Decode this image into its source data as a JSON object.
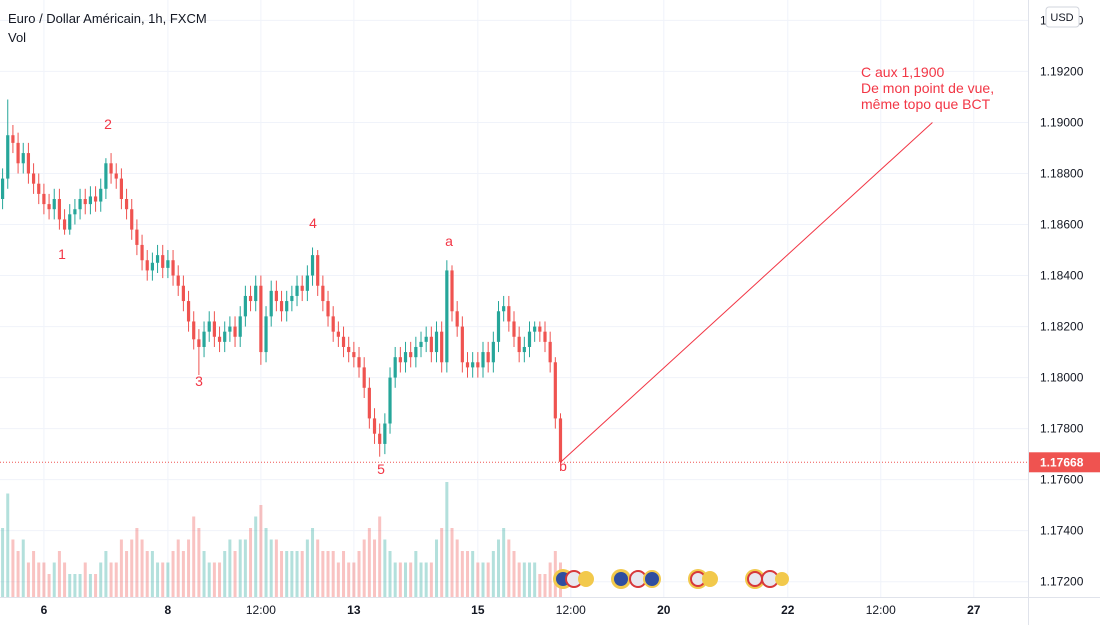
{
  "chart_data": {
    "type": "candlestick",
    "title": "Euro / Dollar Américain, 1h, FXCM",
    "subtitle": "Vol",
    "currency": "USD",
    "up_color": "#26a69a",
    "down_color": "#ef5350",
    "annotation_color": "#f23645",
    "xlim": [
      -0.5,
      198.5
    ],
    "xticks": [
      {
        "value": 8,
        "label": "6"
      },
      {
        "value": 32,
        "label": "8"
      },
      {
        "value": 50,
        "label": "12:00"
      },
      {
        "value": 68,
        "label": "13"
      },
      {
        "value": 92,
        "label": "15"
      },
      {
        "value": 110,
        "label": "12:00"
      },
      {
        "value": 128,
        "label": "20"
      },
      {
        "value": 152,
        "label": "22"
      },
      {
        "value": 170,
        "label": "12:00"
      },
      {
        "value": 188,
        "label": "27"
      }
    ],
    "ylim": [
      1.1714,
      1.1948
    ],
    "yticks": [
      {
        "value": 1.172,
        "label": "1.17200"
      },
      {
        "value": 1.174,
        "label": "1.17400"
      },
      {
        "value": 1.176,
        "label": "1.17600"
      },
      {
        "value": 1.178,
        "label": "1.17800"
      },
      {
        "value": 1.18,
        "label": "1.18000"
      },
      {
        "value": 1.182,
        "label": "1.18200"
      },
      {
        "value": 1.184,
        "label": "1.18400"
      },
      {
        "value": 1.186,
        "label": "1.18600"
      },
      {
        "value": 1.188,
        "label": "1.18800"
      },
      {
        "value": 1.19,
        "label": "1.19000"
      },
      {
        "value": 1.192,
        "label": "1.19200"
      },
      {
        "value": 1.194,
        "label": "1.19400"
      }
    ],
    "last_price": {
      "value": 1.17668,
      "label": "1.17668"
    },
    "open": [
      1.187,
      1.1878,
      1.1895,
      1.1892,
      1.1884,
      1.1888,
      1.188,
      1.1876,
      1.1872,
      1.1868,
      1.1866,
      1.187,
      1.1862,
      1.1858,
      1.1864,
      1.1866,
      1.187,
      1.1868,
      1.1871,
      1.1869,
      1.1874,
      1.1884,
      1.188,
      1.1878,
      1.187,
      1.1866,
      1.1858,
      1.1852,
      1.1846,
      1.1842,
      1.1845,
      1.1848,
      1.1843,
      1.1846,
      1.184,
      1.1836,
      1.183,
      1.1822,
      1.1815,
      1.1812,
      1.1818,
      1.1822,
      1.1816,
      1.1814,
      1.1818,
      1.182,
      1.1816,
      1.1824,
      1.1832,
      1.183,
      1.1836,
      1.181,
      1.1824,
      1.1834,
      1.183,
      1.1826,
      1.183,
      1.1832,
      1.1836,
      1.1834,
      1.184,
      1.1848,
      1.1836,
      1.183,
      1.1824,
      1.1818,
      1.1816,
      1.1812,
      1.181,
      1.1808,
      1.1804,
      1.1796,
      1.1784,
      1.1778,
      1.1774,
      1.1782,
      1.18,
      1.1808,
      1.1806,
      1.181,
      1.1808,
      1.1812,
      1.1814,
      1.1816,
      1.181,
      1.1818,
      1.1806,
      1.1842,
      1.1826,
      1.182,
      1.1806,
      1.1804,
      1.1806,
      1.1804,
      1.181,
      1.1806,
      1.1814,
      1.1826,
      1.1828,
      1.1822,
      1.1816,
      1.181,
      1.1812,
      1.1818,
      1.182,
      1.1818,
      1.1814,
      1.1806,
      1.1784
    ],
    "high": [
      1.1882,
      1.1909,
      1.1899,
      1.1896,
      1.1892,
      1.1892,
      1.1884,
      1.188,
      1.1876,
      1.1872,
      1.1874,
      1.1874,
      1.1866,
      1.1868,
      1.187,
      1.1874,
      1.1874,
      1.1875,
      1.1875,
      1.1878,
      1.1886,
      1.1888,
      1.1884,
      1.1882,
      1.1874,
      1.187,
      1.1862,
      1.1856,
      1.185,
      1.1849,
      1.1852,
      1.1852,
      1.185,
      1.185,
      1.1844,
      1.184,
      1.1834,
      1.1826,
      1.1819,
      1.1822,
      1.1826,
      1.1826,
      1.182,
      1.1822,
      1.1824,
      1.1824,
      1.1828,
      1.1836,
      1.1836,
      1.184,
      1.184,
      1.1828,
      1.1838,
      1.1838,
      1.1834,
      1.1834,
      1.1836,
      1.184,
      1.184,
      1.1844,
      1.1851,
      1.185,
      1.184,
      1.1834,
      1.1828,
      1.1822,
      1.182,
      1.1816,
      1.1814,
      1.1812,
      1.1808,
      1.18,
      1.1788,
      1.1782,
      1.1786,
      1.1804,
      1.1812,
      1.1812,
      1.1814,
      1.1814,
      1.1816,
      1.1818,
      1.182,
      1.182,
      1.1822,
      1.1822,
      1.1846,
      1.1844,
      1.183,
      1.1824,
      1.181,
      1.181,
      1.181,
      1.1814,
      1.1814,
      1.1818,
      1.183,
      1.1832,
      1.1832,
      1.1826,
      1.182,
      1.1816,
      1.1822,
      1.1822,
      1.1822,
      1.1822,
      1.1818,
      1.1808,
      1.1786
    ],
    "low": [
      1.1866,
      1.1874,
      1.1888,
      1.188,
      1.188,
      1.1876,
      1.1872,
      1.1868,
      1.1864,
      1.1862,
      1.1862,
      1.1858,
      1.1856,
      1.1856,
      1.186,
      1.1862,
      1.1864,
      1.1864,
      1.1865,
      1.1865,
      1.187,
      1.1876,
      1.1874,
      1.1866,
      1.1862,
      1.1854,
      1.1848,
      1.1842,
      1.1838,
      1.1838,
      1.1841,
      1.1839,
      1.1839,
      1.1836,
      1.1832,
      1.1826,
      1.1818,
      1.1811,
      1.1801,
      1.1808,
      1.1814,
      1.1812,
      1.181,
      1.181,
      1.1814,
      1.1812,
      1.1812,
      1.182,
      1.1826,
      1.1826,
      1.1805,
      1.1806,
      1.182,
      1.1826,
      1.1822,
      1.1822,
      1.1826,
      1.1828,
      1.183,
      1.183,
      1.1836,
      1.1832,
      1.1826,
      1.182,
      1.1814,
      1.1812,
      1.1808,
      1.1806,
      1.1804,
      1.18,
      1.1792,
      1.178,
      1.1774,
      1.1769,
      1.177,
      1.1778,
      1.1796,
      1.1802,
      1.1802,
      1.1804,
      1.1804,
      1.1808,
      1.181,
      1.1806,
      1.1806,
      1.1802,
      1.1802,
      1.1822,
      1.1816,
      1.1802,
      1.18,
      1.18,
      1.18,
      1.18,
      1.1802,
      1.1802,
      1.181,
      1.1822,
      1.1818,
      1.1812,
      1.1806,
      1.1806,
      1.1808,
      1.1814,
      1.1814,
      1.181,
      1.1802,
      1.178,
      1.1767
    ],
    "close": [
      1.1878,
      1.1895,
      1.1892,
      1.1884,
      1.1888,
      1.188,
      1.1876,
      1.1872,
      1.1868,
      1.1866,
      1.187,
      1.1862,
      1.1858,
      1.1864,
      1.1866,
      1.187,
      1.1868,
      1.1871,
      1.1869,
      1.1874,
      1.1884,
      1.188,
      1.1878,
      1.187,
      1.1866,
      1.1858,
      1.1852,
      1.1846,
      1.1842,
      1.1845,
      1.1848,
      1.1843,
      1.1846,
      1.184,
      1.1836,
      1.183,
      1.1822,
      1.1815,
      1.1812,
      1.1818,
      1.1822,
      1.1816,
      1.1814,
      1.1818,
      1.182,
      1.1816,
      1.1824,
      1.1832,
      1.183,
      1.1836,
      1.181,
      1.1824,
      1.1834,
      1.183,
      1.1826,
      1.183,
      1.1832,
      1.1836,
      1.1834,
      1.184,
      1.1848,
      1.1836,
      1.183,
      1.1824,
      1.1818,
      1.1816,
      1.1812,
      1.181,
      1.1808,
      1.1804,
      1.1796,
      1.1784,
      1.1778,
      1.1774,
      1.1782,
      1.18,
      1.1808,
      1.1806,
      1.181,
      1.1808,
      1.1812,
      1.1814,
      1.1816,
      1.181,
      1.1818,
      1.1806,
      1.1842,
      1.1826,
      1.182,
      1.1806,
      1.1804,
      1.1806,
      1.1804,
      1.181,
      1.1806,
      1.1814,
      1.1826,
      1.1828,
      1.1822,
      1.1816,
      1.181,
      1.1812,
      1.1818,
      1.182,
      1.1818,
      1.1814,
      1.1806,
      1.1784,
      1.1767
    ],
    "volume": [
      6,
      9,
      5,
      4,
      5,
      3,
      4,
      3,
      3,
      2,
      3,
      4,
      3,
      2,
      2,
      2,
      3,
      2,
      2,
      3,
      4,
      3,
      3,
      5,
      4,
      5,
      6,
      5,
      4,
      4,
      3,
      3,
      3,
      4,
      5,
      4,
      5,
      7,
      6,
      4,
      3,
      3,
      3,
      4,
      5,
      4,
      5,
      5,
      6,
      7,
      8,
      6,
      5,
      5,
      4,
      4,
      4,
      4,
      4,
      5,
      6,
      5,
      4,
      4,
      4,
      3,
      4,
      3,
      3,
      4,
      5,
      6,
      5,
      7,
      5,
      4,
      3,
      3,
      3,
      3,
      4,
      3,
      3,
      3,
      5,
      6,
      10,
      6,
      5,
      4,
      4,
      4,
      3,
      3,
      3,
      4,
      5,
      6,
      5,
      4,
      3,
      3,
      3,
      3,
      2,
      2,
      3,
      4,
      3
    ],
    "wave_labels": [
      "1",
      "2",
      "3",
      "4",
      "5",
      "a",
      "b"
    ],
    "projection": {
      "x": [
        108,
        180
      ],
      "y": [
        1.17668,
        1.19
      ]
    },
    "note": [
      "C aux 1,1900",
      "De mon point de vue,",
      "même topo que BCT"
    ]
  }
}
